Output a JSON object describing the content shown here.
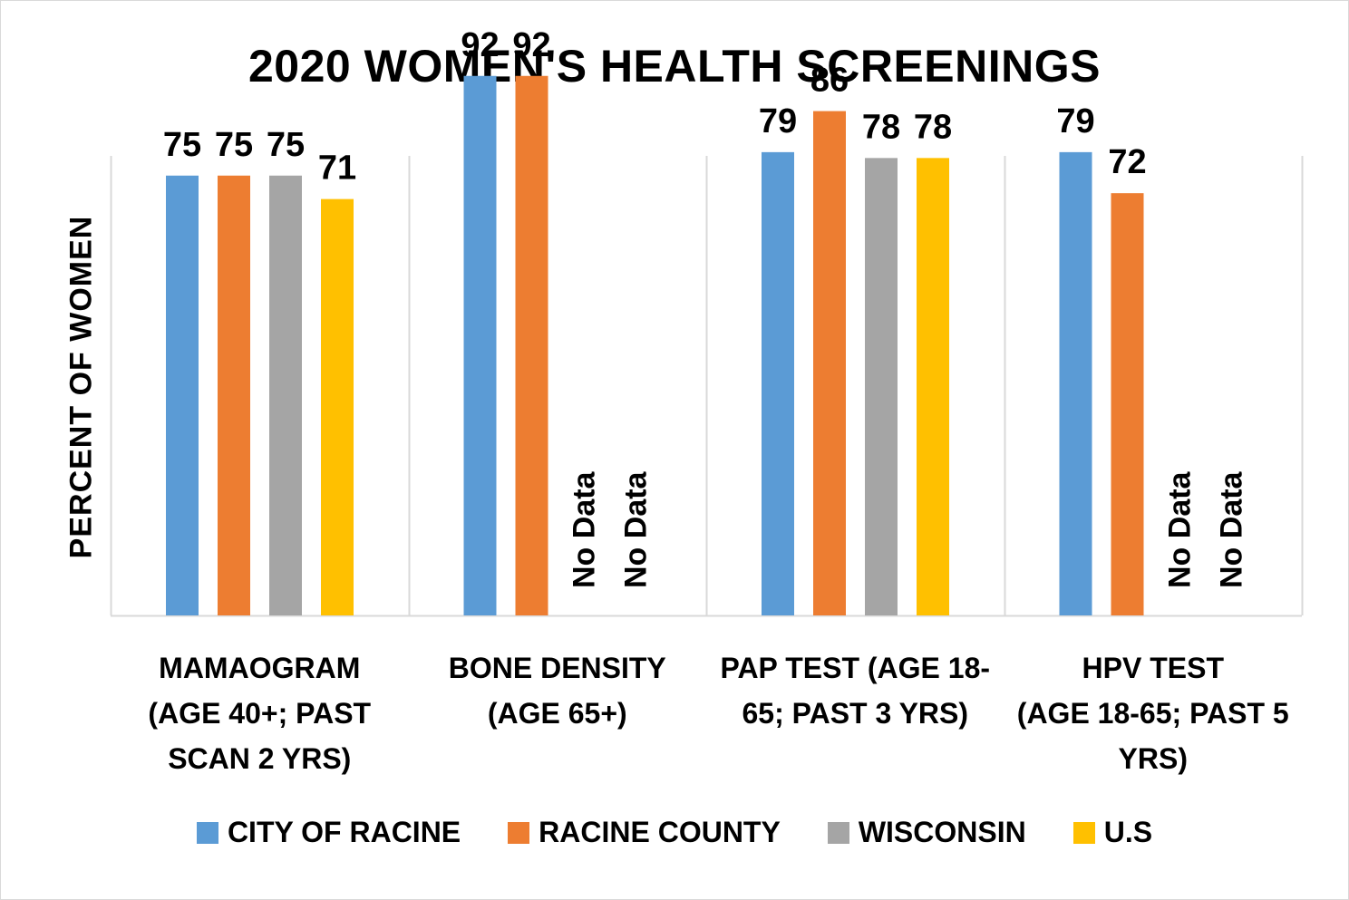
{
  "chart_data": {
    "type": "bar",
    "title": "2020 WOMEN'S HEALTH SCREENINGS",
    "ylabel": "PERCENT OF WOMEN",
    "xlabel": "",
    "ylim": [
      0,
      100
    ],
    "grid": "vertical category separators",
    "legend_position": "bottom",
    "categories": [
      "MAMAOGRAM (AGE 40+; PAST SCAN 2 YRS)",
      "BONE DENSITY (AGE 65+)",
      "PAP TEST (AGE 18-65; PAST 3 YRS)",
      "HPV TEST (AGE 18-65; PAST 5 YRS)"
    ],
    "category_lines": [
      [
        "MAMAOGRAM",
        "(AGE 40+; PAST",
        "SCAN 2 YRS)"
      ],
      [
        "BONE DENSITY",
        "(AGE 65+)"
      ],
      [
        "PAP TEST (AGE 18-",
        "65; PAST 3 YRS)"
      ],
      [
        "HPV TEST",
        "(AGE 18-65; PAST 5",
        "YRS)"
      ]
    ],
    "missing_label": "No Data",
    "series": [
      {
        "name": "CITY OF RACINE",
        "color": "#5b9bd5",
        "values": [
          75,
          92,
          79,
          79
        ]
      },
      {
        "name": "RACINE COUNTY",
        "color": "#ed7d31",
        "values": [
          75,
          92,
          86,
          72
        ]
      },
      {
        "name": "WISCONSIN",
        "color": "#a5a5a5",
        "values": [
          75,
          null,
          78,
          null
        ]
      },
      {
        "name": "U.S",
        "color": "#ffc000",
        "values": [
          71,
          null,
          78,
          null
        ]
      }
    ]
  }
}
